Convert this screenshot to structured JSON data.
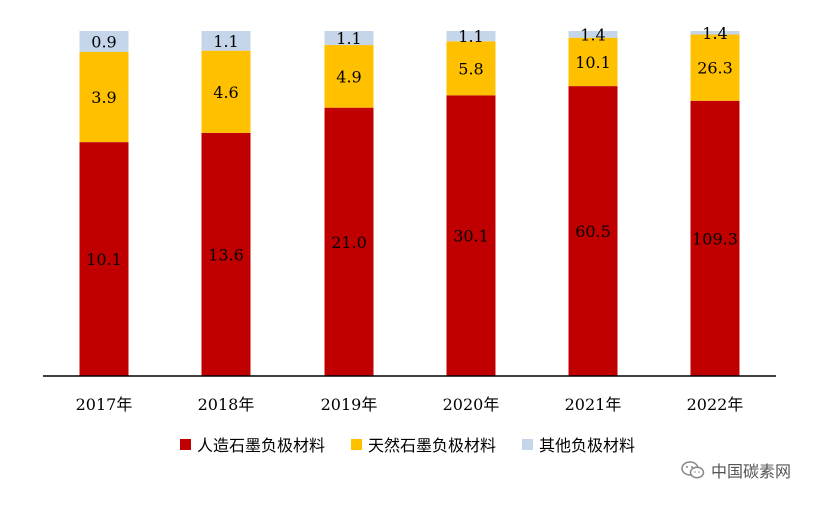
{
  "chart_data": {
    "type": "bar",
    "stacked": true,
    "categories": [
      "2017年",
      "2018年",
      "2019年",
      "2020年",
      "2021年",
      "2022年"
    ],
    "series": [
      {
        "name": "人造石墨负极材料",
        "color": "#C00000",
        "values": [
          10.1,
          13.6,
          21.0,
          30.1,
          60.5,
          109.3
        ]
      },
      {
        "name": "天然石墨负极材料",
        "color": "#FFC000",
        "values": [
          3.9,
          4.6,
          4.9,
          5.8,
          10.1,
          26.3
        ]
      },
      {
        "name": "其他负极材料",
        "color": "#C5D5EA",
        "values": [
          0.9,
          1.1,
          1.1,
          1.1,
          1.4,
          1.4
        ]
      }
    ],
    "data_labels": true,
    "normalized_per_bar": true,
    "legend_position": "bottom",
    "grid": false
  },
  "watermark": {
    "text": "中国碳素网",
    "icon": "wechat-icon"
  }
}
